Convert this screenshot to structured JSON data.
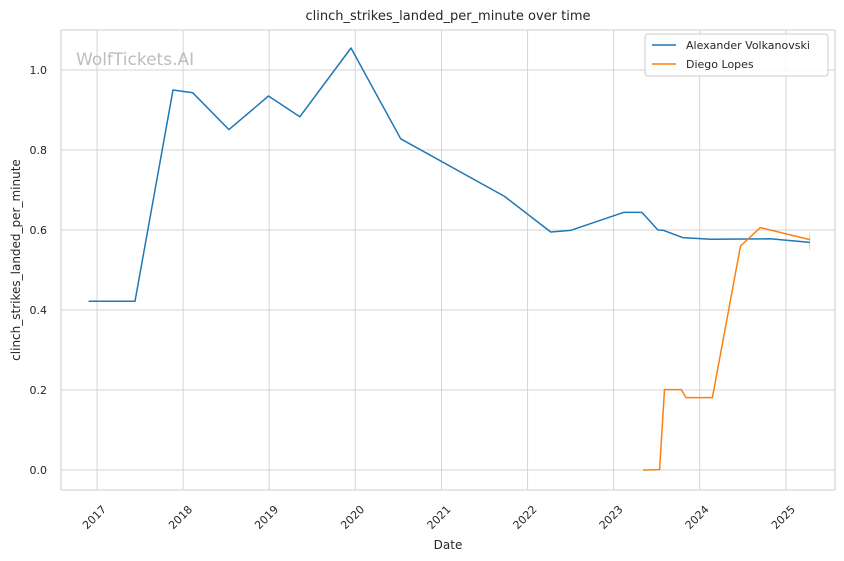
{
  "chart_data": {
    "type": "line",
    "title": "clinch_strikes_landed_per_minute over time",
    "xlabel": "Date",
    "ylabel": "clinch_strikes_landed_per_minute",
    "watermark": "WolfTickets.AI",
    "xlim": [
      "2016-08-01",
      "2025-07-28"
    ],
    "ylim": [
      -0.05,
      1.1
    ],
    "x_ticks": [
      "2017",
      "2018",
      "2019",
      "2020",
      "2021",
      "2022",
      "2023",
      "2024",
      "2025"
    ],
    "y_ticks": [
      "0.0",
      "0.2",
      "0.4",
      "0.6",
      "0.8",
      "1.0"
    ],
    "grid": true,
    "legend_position": "top-right",
    "series": [
      {
        "name": "Alexander Volkanovski",
        "color": "#1f77b4",
        "points": [
          [
            "2016-11-26",
            0.422
          ],
          [
            "2017-06-11",
            0.422
          ],
          [
            "2017-11-19",
            0.95
          ],
          [
            "2018-02-11",
            0.943
          ],
          [
            "2018-07-14",
            0.851
          ],
          [
            "2018-12-29",
            0.935
          ],
          [
            "2019-05-11",
            0.883
          ],
          [
            "2019-12-14",
            1.055
          ],
          [
            "2020-07-12",
            0.828
          ],
          [
            "2021-09-25",
            0.684
          ],
          [
            "2022-04-09",
            0.595
          ],
          [
            "2022-07-02",
            0.599
          ],
          [
            "2023-02-12",
            0.644
          ],
          [
            "2023-05-01",
            0.644
          ],
          [
            "2023-07-08",
            0.6
          ],
          [
            "2023-08-01",
            0.599
          ],
          [
            "2023-10-21",
            0.581
          ],
          [
            "2024-02-17",
            0.577
          ],
          [
            "2024-10-26",
            0.578
          ],
          [
            "2025-04-12",
            0.569
          ]
        ]
      },
      {
        "name": "Diego Lopes",
        "color": "#ff7f0e",
        "points": [
          [
            "2023-05-06",
            0.0
          ],
          [
            "2023-07-15",
            0.001
          ],
          [
            "2023-08-05",
            0.201
          ],
          [
            "2023-10-15",
            0.201
          ],
          [
            "2023-11-04",
            0.181
          ],
          [
            "2024-02-24",
            0.181
          ],
          [
            "2024-06-22",
            0.56
          ],
          [
            "2024-09-14",
            0.606
          ],
          [
            "2025-04-12",
            0.576
          ]
        ]
      }
    ]
  }
}
